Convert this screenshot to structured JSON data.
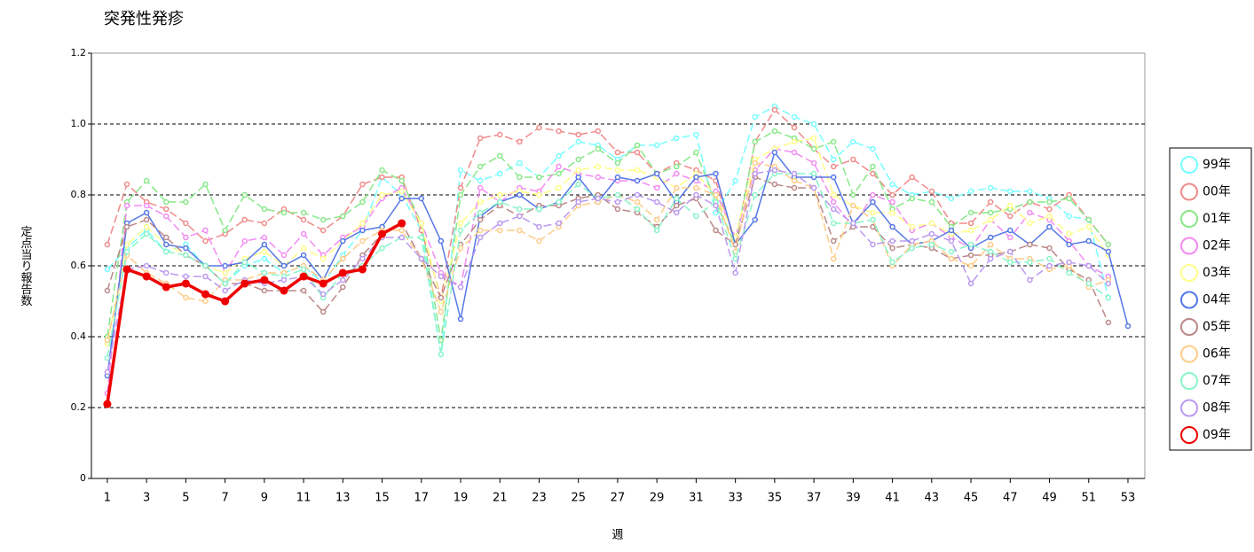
{
  "chart_data": {
    "type": "line",
    "title": "突発性発疹",
    "x_label": "週",
    "y_label": "定点当り報告数",
    "x": [
      1,
      2,
      3,
      4,
      5,
      6,
      7,
      8,
      9,
      10,
      11,
      12,
      13,
      14,
      15,
      16,
      17,
      18,
      19,
      20,
      21,
      22,
      23,
      24,
      25,
      26,
      27,
      28,
      29,
      30,
      31,
      32,
      33,
      34,
      35,
      36,
      37,
      38,
      39,
      40,
      41,
      42,
      43,
      44,
      45,
      46,
      47,
      48,
      49,
      50,
      51,
      52,
      53
    ],
    "xlim": [
      0.19,
      53.86
    ],
    "xticks": [
      1,
      3,
      5,
      7,
      9,
      11,
      13,
      15,
      17,
      19,
      21,
      23,
      25,
      27,
      29,
      31,
      33,
      35,
      37,
      39,
      41,
      43,
      45,
      47,
      49,
      51,
      53
    ],
    "ylim": [
      0,
      1.2
    ],
    "yticks": [
      0,
      0.2,
      0.4,
      0.6,
      0.8,
      {
        "value": 1,
        "label": "1.0"
      },
      1.2
    ],
    "grid": true,
    "legend": "right",
    "series": [
      {
        "name": "99年",
        "color": "#77ffff",
        "line_style": "dashed",
        "values": [
          0.59,
          0.65,
          0.7,
          0.64,
          0.66,
          0.6,
          0.55,
          0.6,
          0.62,
          0.58,
          0.6,
          0.55,
          0.63,
          0.7,
          0.85,
          0.8,
          0.7,
          0.35,
          0.87,
          0.84,
          0.86,
          0.89,
          0.85,
          0.91,
          0.95,
          0.94,
          0.9,
          0.94,
          0.94,
          0.96,
          0.97,
          0.75,
          0.84,
          1.02,
          1.05,
          1.02,
          1.0,
          0.9,
          0.95,
          0.93,
          0.83,
          0.8,
          0.81,
          0.79,
          0.81,
          0.82,
          0.81,
          0.81,
          0.79,
          0.74,
          0.73,
          0.51,
          null
        ]
      },
      {
        "name": "00年",
        "color": "#f08a8a",
        "line_style": "dashed",
        "values": [
          0.66,
          0.83,
          0.78,
          0.76,
          0.72,
          0.67,
          0.69,
          0.73,
          0.72,
          0.76,
          0.73,
          0.7,
          0.74,
          0.83,
          0.85,
          0.85,
          0.7,
          0.51,
          0.82,
          0.96,
          0.97,
          0.95,
          0.99,
          0.98,
          0.97,
          0.98,
          0.92,
          0.92,
          0.86,
          0.89,
          0.87,
          0.84,
          0.66,
          0.95,
          1.04,
          0.99,
          0.93,
          0.88,
          0.9,
          0.86,
          0.8,
          0.85,
          0.81,
          0.72,
          0.72,
          0.78,
          0.74,
          0.78,
          0.76,
          0.8,
          0.73,
          0.66,
          null
        ]
      },
      {
        "name": "01年",
        "color": "#88e888",
        "line_style": "dashed",
        "values": [
          0.4,
          0.78,
          0.84,
          0.78,
          0.78,
          0.83,
          0.7,
          0.8,
          0.76,
          0.75,
          0.75,
          0.73,
          0.74,
          0.78,
          0.87,
          0.84,
          0.72,
          0.39,
          0.8,
          0.88,
          0.91,
          0.85,
          0.85,
          0.86,
          0.9,
          0.93,
          0.89,
          0.94,
          0.86,
          0.88,
          0.92,
          0.78,
          0.66,
          0.95,
          0.98,
          0.96,
          0.93,
          0.95,
          0.8,
          0.88,
          0.76,
          0.79,
          0.78,
          0.71,
          0.75,
          0.75,
          0.76,
          0.78,
          0.78,
          0.79,
          0.73,
          0.66,
          null
        ]
      },
      {
        "name": "02年",
        "color": "#f28af2",
        "line_style": "dashed",
        "values": [
          0.24,
          0.77,
          0.77,
          0.74,
          0.68,
          0.7,
          0.58,
          0.67,
          0.68,
          0.63,
          0.69,
          0.63,
          0.68,
          0.71,
          0.79,
          0.82,
          0.72,
          0.58,
          0.54,
          0.82,
          0.78,
          0.82,
          0.81,
          0.88,
          0.86,
          0.85,
          0.84,
          0.84,
          0.82,
          0.86,
          0.84,
          0.81,
          0.68,
          0.87,
          0.93,
          0.92,
          0.89,
          0.78,
          0.71,
          0.8,
          0.78,
          0.7,
          0.72,
          0.68,
          0.65,
          0.73,
          0.68,
          0.75,
          0.73,
          0.67,
          0.6,
          0.57,
          null
        ]
      },
      {
        "name": "03年",
        "color": "#ffff88",
        "line_style": "dashed",
        "values": [
          0.38,
          0.66,
          0.71,
          0.66,
          0.63,
          0.6,
          0.58,
          0.62,
          0.64,
          0.6,
          0.65,
          0.62,
          0.67,
          0.72,
          0.8,
          0.81,
          0.72,
          0.5,
          0.72,
          0.78,
          0.8,
          0.81,
          0.8,
          0.82,
          0.87,
          0.88,
          0.87,
          0.87,
          0.85,
          0.82,
          0.86,
          0.8,
          0.68,
          0.9,
          0.93,
          0.95,
          0.96,
          0.8,
          0.77,
          0.75,
          0.75,
          0.71,
          0.72,
          0.69,
          0.7,
          0.73,
          0.77,
          0.72,
          0.74,
          0.69,
          0.71,
          0.63,
          null
        ]
      },
      {
        "name": "04年",
        "color": "#5577e6",
        "line_style": "solid",
        "values": [
          0.29,
          0.72,
          0.75,
          0.66,
          0.65,
          0.6,
          0.6,
          0.61,
          0.66,
          0.6,
          0.63,
          0.56,
          0.67,
          0.7,
          0.71,
          0.79,
          0.79,
          0.67,
          0.45,
          0.74,
          0.78,
          0.8,
          0.76,
          0.78,
          0.85,
          0.78,
          0.85,
          0.84,
          0.86,
          0.78,
          0.85,
          0.86,
          0.66,
          0.73,
          0.92,
          0.85,
          0.85,
          0.85,
          0.72,
          0.78,
          0.71,
          0.66,
          0.67,
          0.7,
          0.65,
          0.68,
          0.7,
          0.66,
          0.71,
          0.66,
          0.67,
          0.64,
          0.43
        ]
      },
      {
        "name": "05年",
        "color": "#bb8888",
        "line_style": "dashed",
        "values": [
          0.53,
          0.71,
          0.73,
          0.68,
          0.63,
          0.6,
          0.55,
          0.55,
          0.53,
          0.53,
          0.53,
          0.47,
          0.54,
          0.63,
          0.69,
          0.72,
          0.62,
          0.51,
          0.66,
          0.73,
          0.77,
          0.74,
          0.77,
          0.77,
          0.79,
          0.8,
          0.76,
          0.75,
          0.71,
          0.77,
          0.79,
          0.7,
          0.66,
          0.85,
          0.83,
          0.82,
          0.82,
          0.67,
          0.71,
          0.71,
          0.65,
          0.66,
          0.65,
          0.62,
          0.63,
          0.63,
          0.64,
          0.66,
          0.65,
          0.59,
          0.56,
          0.44,
          null
        ]
      },
      {
        "name": "06年",
        "color": "#ffcc88",
        "line_style": "dashed",
        "values": [
          0.39,
          0.63,
          0.58,
          0.55,
          0.51,
          0.5,
          0.56,
          0.56,
          0.58,
          0.58,
          0.6,
          0.56,
          0.62,
          0.67,
          0.7,
          0.7,
          0.62,
          0.47,
          0.65,
          0.7,
          0.7,
          0.7,
          0.67,
          0.71,
          0.77,
          0.78,
          0.8,
          0.78,
          0.73,
          0.82,
          0.82,
          0.8,
          0.64,
          0.89,
          0.88,
          0.84,
          0.82,
          0.62,
          0.77,
          0.73,
          0.6,
          0.66,
          0.67,
          0.62,
          0.6,
          0.66,
          0.62,
          0.62,
          0.59,
          0.6,
          0.54,
          0.56,
          null
        ]
      },
      {
        "name": "07年",
        "color": "#88f5c8",
        "line_style": "dashed",
        "values": [
          0.34,
          0.64,
          0.69,
          0.64,
          0.63,
          0.6,
          0.55,
          0.61,
          0.58,
          0.57,
          0.59,
          0.51,
          0.58,
          0.6,
          0.65,
          0.68,
          0.68,
          0.35,
          0.7,
          0.75,
          0.78,
          0.76,
          0.76,
          0.78,
          0.83,
          0.79,
          0.8,
          0.76,
          0.7,
          0.79,
          0.74,
          0.78,
          0.62,
          0.8,
          0.86,
          0.86,
          0.86,
          0.72,
          0.72,
          0.73,
          0.61,
          0.65,
          0.66,
          0.64,
          0.66,
          0.64,
          0.61,
          0.61,
          0.62,
          0.58,
          0.55,
          0.51,
          null
        ]
      },
      {
        "name": "08年",
        "color": "#bb99f0",
        "line_style": "dashed",
        "values": [
          0.3,
          0.59,
          0.6,
          0.58,
          0.57,
          0.57,
          0.53,
          0.56,
          0.55,
          0.56,
          0.57,
          0.52,
          0.56,
          0.62,
          0.68,
          0.68,
          0.62,
          0.57,
          0.54,
          0.68,
          0.72,
          0.74,
          0.71,
          0.72,
          0.78,
          0.79,
          0.78,
          0.8,
          0.78,
          0.75,
          0.8,
          0.77,
          0.58,
          0.86,
          0.87,
          0.86,
          0.82,
          0.76,
          0.72,
          0.66,
          0.67,
          0.67,
          0.69,
          0.67,
          0.55,
          0.62,
          0.64,
          0.56,
          0.6,
          0.61,
          0.6,
          0.55,
          null
        ]
      },
      {
        "name": "09年",
        "color": "#ee0000",
        "line_style": "thick",
        "values": [
          0.21,
          0.59,
          0.57,
          0.54,
          0.55,
          0.52,
          0.5,
          0.55,
          0.56,
          0.53,
          0.57,
          0.55,
          0.58,
          0.59,
          0.69,
          0.72,
          null,
          null,
          null,
          null,
          null,
          null,
          null,
          null,
          null,
          null,
          null,
          null,
          null,
          null,
          null,
          null,
          null,
          null,
          null,
          null,
          null,
          null,
          null,
          null,
          null,
          null,
          null,
          null,
          null,
          null,
          null,
          null,
          null,
          null,
          null,
          null,
          null
        ]
      }
    ]
  }
}
